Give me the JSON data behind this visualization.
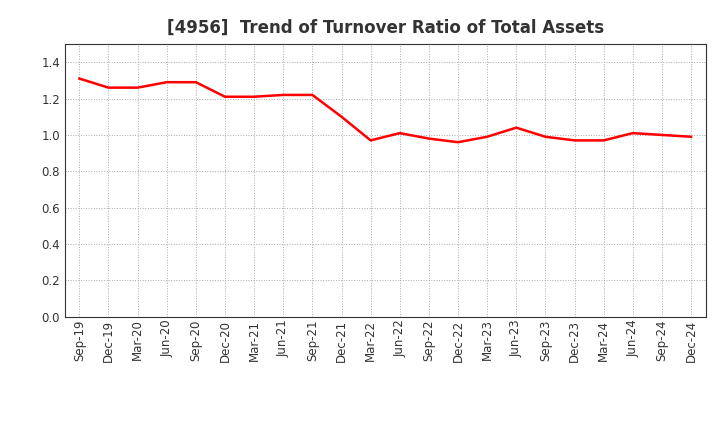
{
  "title": "[4956]  Trend of Turnover Ratio of Total Assets",
  "line_color": "#FF0000",
  "background_color": "#FFFFFF",
  "plot_bg_color": "#FFFFFF",
  "grid_color": "#AAAAAA",
  "ylim": [
    0.0,
    1.5
  ],
  "yticks": [
    0.0,
    0.2,
    0.4,
    0.6,
    0.8,
    1.0,
    1.2,
    1.4
  ],
  "x_labels": [
    "Sep-19",
    "Dec-19",
    "Mar-20",
    "Jun-20",
    "Sep-20",
    "Dec-20",
    "Mar-21",
    "Jun-21",
    "Sep-21",
    "Dec-21",
    "Mar-22",
    "Jun-22",
    "Sep-22",
    "Dec-22",
    "Mar-23",
    "Jun-23",
    "Sep-23",
    "Dec-23",
    "Mar-24",
    "Jun-24",
    "Sep-24",
    "Dec-24"
  ],
  "values": [
    1.31,
    1.26,
    1.26,
    1.29,
    1.29,
    1.21,
    1.21,
    1.22,
    1.22,
    1.1,
    0.97,
    1.01,
    0.98,
    0.96,
    0.99,
    1.04,
    0.99,
    0.97,
    0.97,
    1.01,
    1.0,
    0.99
  ],
  "line_width": 1.8,
  "title_fontsize": 12,
  "tick_fontsize": 8.5,
  "title_color": "#333333",
  "tick_label_color": "#333333"
}
